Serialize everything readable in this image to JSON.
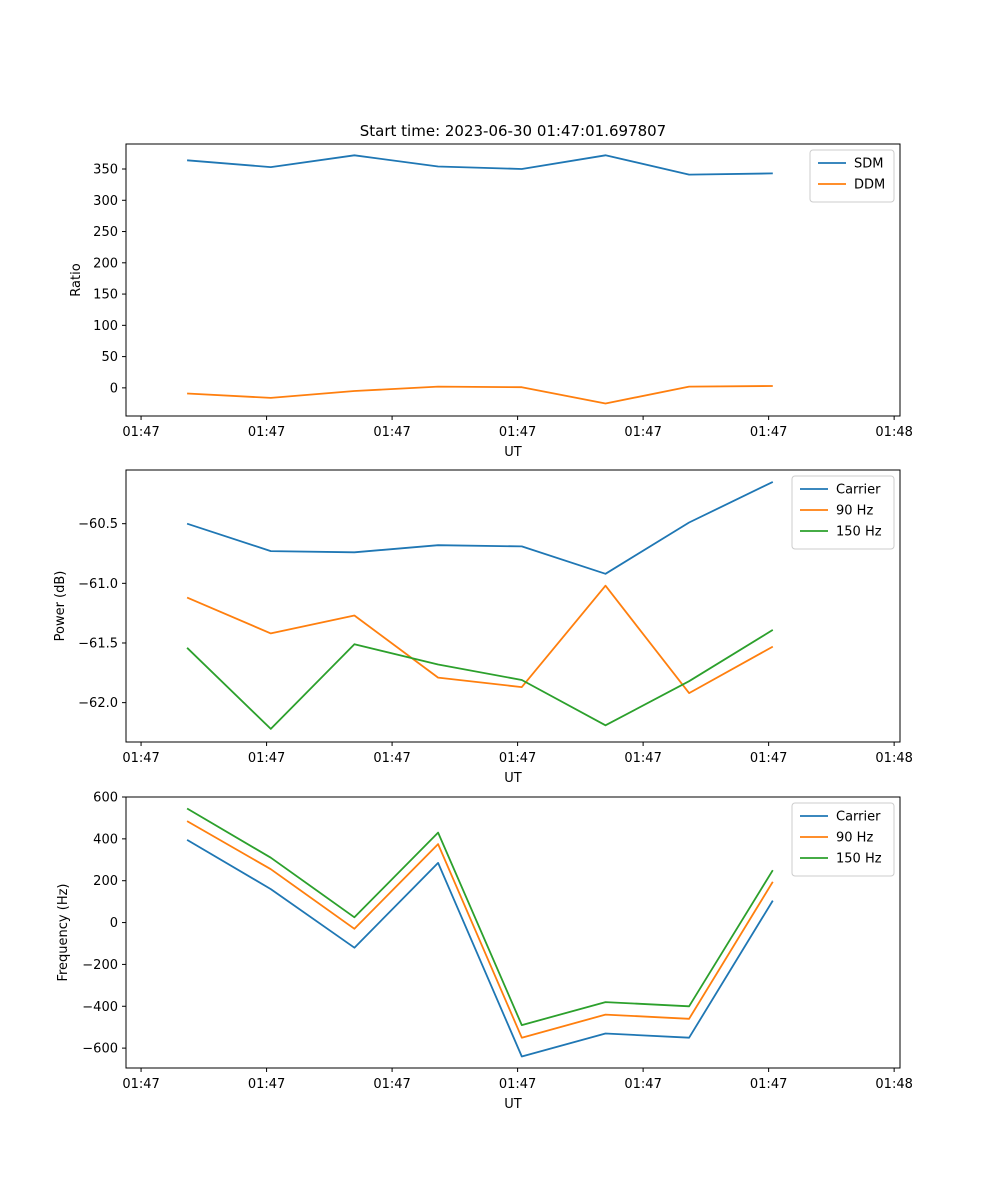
{
  "figure": {
    "title": "Start time: 2023-06-30 01:47:01.697807"
  },
  "chart_data": [
    {
      "type": "line",
      "title": "Start time: 2023-06-30 01:47:01.697807",
      "xlabel": "UT",
      "ylabel": "Ratio",
      "x": [
        1,
        2,
        3,
        4,
        5,
        6,
        7,
        8
      ],
      "xlim": [
        0.27,
        9.52
      ],
      "x_ticks": [
        0.45,
        1.95,
        3.45,
        4.95,
        6.45,
        7.95,
        9.45
      ],
      "x_tick_labels": [
        "01:47",
        "01:47",
        "01:47",
        "01:47",
        "01:47",
        "01:47",
        "01:48"
      ],
      "ylim": [
        -45,
        390
      ],
      "y_ticks": [
        0,
        50,
        100,
        150,
        200,
        250,
        300,
        350
      ],
      "y_tick_labels": [
        "0",
        "50",
        "100",
        "150",
        "200",
        "250",
        "300",
        "350"
      ],
      "legend_position": "upper right",
      "series": [
        {
          "name": "SDM",
          "color": "#1f77b4",
          "values": [
            364,
            353,
            372,
            354,
            350,
            372,
            341,
            343
          ]
        },
        {
          "name": "DDM",
          "color": "#ff7f0e",
          "values": [
            -9,
            -16,
            -5,
            2,
            1,
            -25,
            2,
            3
          ]
        }
      ]
    },
    {
      "type": "line",
      "title": "",
      "xlabel": "UT",
      "ylabel": "Power (dB)",
      "x": [
        1,
        2,
        3,
        4,
        5,
        6,
        7,
        8
      ],
      "xlim": [
        0.27,
        9.52
      ],
      "x_ticks": [
        0.45,
        1.95,
        3.45,
        4.95,
        6.45,
        7.95,
        9.45
      ],
      "x_tick_labels": [
        "01:47",
        "01:47",
        "01:47",
        "01:47",
        "01:47",
        "01:47",
        "01:48"
      ],
      "ylim": [
        -62.33,
        -60.05
      ],
      "y_ticks": [
        -62.0,
        -61.5,
        -61.0,
        -60.5
      ],
      "y_tick_labels": [
        "−62.0",
        "−61.5",
        "−61.0",
        "−60.5"
      ],
      "legend_position": "upper right",
      "series": [
        {
          "name": "Carrier",
          "color": "#1f77b4",
          "values": [
            -60.5,
            -60.73,
            -60.74,
            -60.68,
            -60.69,
            -60.92,
            -60.49,
            -60.15
          ]
        },
        {
          "name": "90 Hz",
          "color": "#ff7f0e",
          "values": [
            -61.12,
            -61.42,
            -61.27,
            -61.79,
            -61.87,
            -61.02,
            -61.92,
            -61.53
          ]
        },
        {
          "name": "150 Hz",
          "color": "#2ca02c",
          "values": [
            -61.54,
            -62.22,
            -61.51,
            -61.68,
            -61.81,
            -62.19,
            -61.82,
            -61.39
          ]
        }
      ]
    },
    {
      "type": "line",
      "title": "",
      "xlabel": "UT",
      "ylabel": "Frequency (Hz)",
      "x": [
        1,
        2,
        3,
        4,
        5,
        6,
        7,
        8
      ],
      "xlim": [
        0.27,
        9.52
      ],
      "x_ticks": [
        0.45,
        1.95,
        3.45,
        4.95,
        6.45,
        7.95,
        9.45
      ],
      "x_tick_labels": [
        "01:47",
        "01:47",
        "01:47",
        "01:47",
        "01:47",
        "01:47",
        "01:48"
      ],
      "ylim": [
        -695,
        600
      ],
      "y_ticks": [
        -600,
        -400,
        -200,
        0,
        200,
        400,
        600
      ],
      "y_tick_labels": [
        "−600",
        "−400",
        "−200",
        "0",
        "200",
        "400",
        "600"
      ],
      "legend_position": "upper right",
      "series": [
        {
          "name": "Carrier",
          "color": "#1f77b4",
          "values": [
            395,
            160,
            -120,
            285,
            -640,
            -530,
            -550,
            105
          ]
        },
        {
          "name": "90 Hz",
          "color": "#ff7f0e",
          "values": [
            485,
            255,
            -30,
            375,
            -550,
            -440,
            -460,
            195
          ]
        },
        {
          "name": "150 Hz",
          "color": "#2ca02c",
          "values": [
            545,
            310,
            25,
            430,
            -490,
            -380,
            -400,
            250
          ]
        }
      ]
    }
  ]
}
